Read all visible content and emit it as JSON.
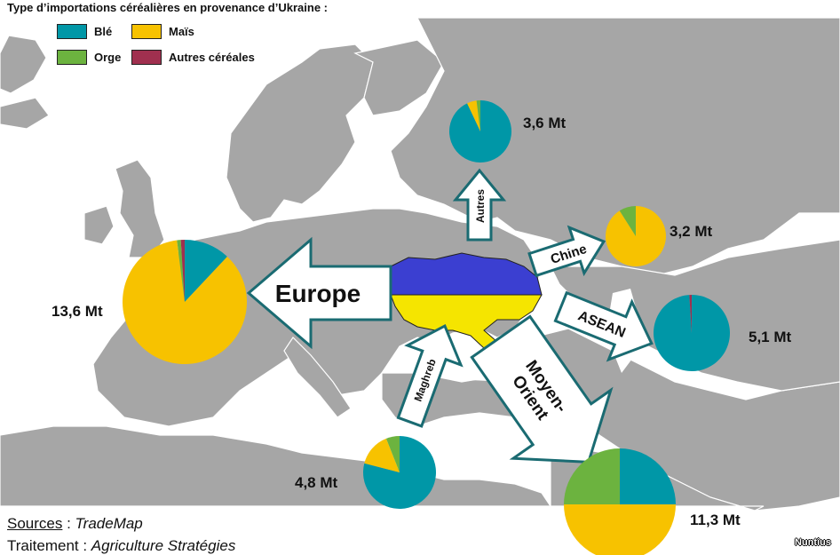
{
  "title": "Type d’importations céréalières en provenance d’Ukraine :",
  "legend": [
    {
      "label": "Blé",
      "color": "#0097a7"
    },
    {
      "label": "Maïs",
      "color": "#f7c200"
    },
    {
      "label": "Orge",
      "color": "#6cb33f"
    },
    {
      "label": "Autres céréales",
      "color": "#a0304f"
    }
  ],
  "colors": {
    "ble": "#0097a7",
    "mais": "#f7c200",
    "orge": "#6cb33f",
    "autres": "#a0304f",
    "sea": "#ffffff",
    "land": "#a6a6a6",
    "border": "#ffffff",
    "ukraine_top": "#3b3fd1",
    "ukraine_bottom": "#f5e500",
    "arrow_border": "#1a6b72"
  },
  "regions": [
    {
      "id": "europe",
      "arrow_label": "Europe",
      "value_label": "13,6 Mt",
      "shares": {
        "ble": 0.12,
        "mais": 0.86,
        "orge": 0.01,
        "autres": 0.01
      }
    },
    {
      "id": "autres",
      "arrow_label": "Autres",
      "value_label": "3,6 Mt",
      "shares": {
        "ble": 0.93,
        "mais": 0.05,
        "orge": 0.02,
        "autres": 0.0
      }
    },
    {
      "id": "chine",
      "arrow_label": "Chine",
      "value_label": "3,2 Mt",
      "shares": {
        "ble": 0.0,
        "mais": 0.91,
        "orge": 0.09,
        "autres": 0.0
      }
    },
    {
      "id": "asean",
      "arrow_label": "ASEAN",
      "value_label": "5,1 Mt",
      "shares": {
        "ble": 0.99,
        "mais": 0.0,
        "orge": 0.0,
        "autres": 0.01
      }
    },
    {
      "id": "maghreb",
      "arrow_label": "Maghreb",
      "value_label": "4,8 Mt",
      "shares": {
        "ble": 0.79,
        "mais": 0.15,
        "orge": 0.06,
        "autres": 0.0
      }
    },
    {
      "id": "moyen_orient",
      "arrow_label": "Moyen-Orient",
      "arrow_label_lines": [
        "Moyen-",
        "Orient"
      ],
      "value_label": "11,3 Mt",
      "shares": {
        "ble": 0.25,
        "mais": 0.5,
        "orge": 0.25,
        "autres": 0.0
      }
    }
  ],
  "sources": {
    "prefix": "Sources",
    "sep": " : ",
    "value": "TradeMap"
  },
  "treatment": {
    "prefix": "Traitement",
    "sep": " : ",
    "value": "Agriculture  Stratégies"
  },
  "credit": "Nuntius"
}
